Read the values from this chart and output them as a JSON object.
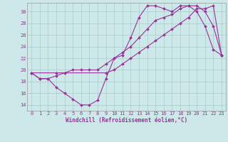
{
  "background_color": "#cce8e8",
  "grid_color": "#aacccc",
  "line_color": "#993399",
  "xlim": [
    -0.5,
    23.5
  ],
  "ylim": [
    13,
    31.5
  ],
  "xticks": [
    0,
    1,
    2,
    3,
    4,
    5,
    6,
    7,
    8,
    9,
    10,
    11,
    12,
    13,
    14,
    15,
    16,
    17,
    18,
    19,
    20,
    21,
    22,
    23
  ],
  "yticks": [
    14,
    16,
    18,
    20,
    22,
    24,
    26,
    28,
    30
  ],
  "xlabel": "Windchill (Refroidissement éolien,°C)",
  "line1_x": [
    0,
    1,
    2,
    3,
    4,
    5,
    6,
    7,
    8,
    9,
    10,
    11,
    12,
    13,
    14,
    15,
    16,
    17,
    18,
    19,
    20,
    21,
    22,
    23
  ],
  "line1_y": [
    19.5,
    18.5,
    18.5,
    17.0,
    16.0,
    15.0,
    14.0,
    14.0,
    14.8,
    18.5,
    22.0,
    22.5,
    25.5,
    29.0,
    31.0,
    31.0,
    30.5,
    30.0,
    31.0,
    31.0,
    30.0,
    27.5,
    23.5,
    22.5
  ],
  "line2_x": [
    0,
    1,
    2,
    3,
    4,
    5,
    6,
    7,
    8,
    9,
    10,
    11,
    12,
    13,
    14,
    15,
    16,
    17,
    18,
    19,
    20,
    21,
    22,
    23
  ],
  "line2_y": [
    19.5,
    18.5,
    18.5,
    19.0,
    19.5,
    20.0,
    20.0,
    20.0,
    20.0,
    21.0,
    22.0,
    23.0,
    24.0,
    25.5,
    27.0,
    28.5,
    29.0,
    29.5,
    30.5,
    31.0,
    31.0,
    30.0,
    27.5,
    22.5
  ],
  "line3_x": [
    0,
    3,
    9,
    10,
    11,
    12,
    13,
    14,
    15,
    16,
    17,
    18,
    19,
    20,
    21,
    22,
    23
  ],
  "line3_y": [
    19.5,
    19.5,
    19.5,
    20.0,
    21.0,
    22.0,
    23.0,
    24.0,
    25.0,
    26.0,
    27.0,
    28.0,
    29.0,
    30.5,
    30.5,
    31.0,
    22.5
  ],
  "marker_size": 2.0,
  "linewidth": 0.8,
  "tick_fontsize": 5.0,
  "xlabel_fontsize": 5.5
}
